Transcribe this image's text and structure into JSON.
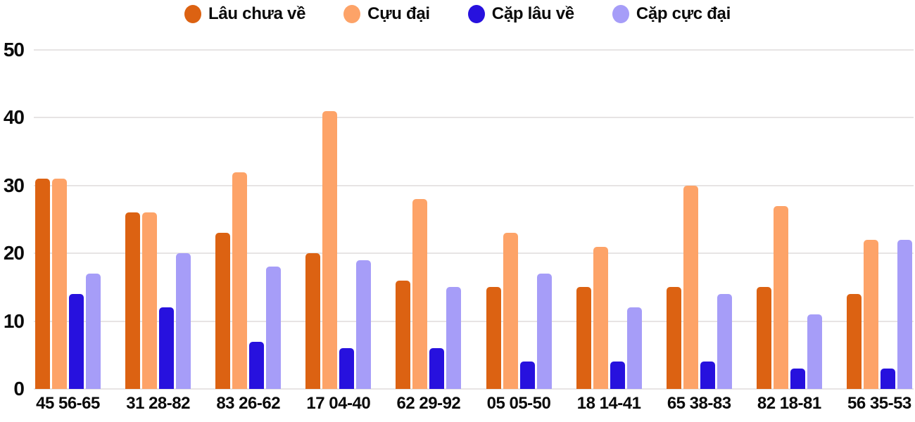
{
  "chart_data": {
    "type": "bar",
    "title": "",
    "xlabel": "",
    "ylabel": "",
    "categories": [
      "45 56-65",
      "31 28-82",
      "83 26-62",
      "17 04-40",
      "62 29-92",
      "05 05-50",
      "18 14-41",
      "65 38-83",
      "82 18-81",
      "56 35-53"
    ],
    "series": [
      {
        "name": "Lâu chưa về",
        "color": "#DC6212",
        "values": [
          31,
          26,
          23,
          20,
          16,
          15,
          15,
          15,
          15,
          14
        ]
      },
      {
        "name": "Cựu đại",
        "color": "#FDA368",
        "values": [
          31,
          26,
          32,
          41,
          28,
          23,
          21,
          30,
          27,
          22
        ]
      },
      {
        "name": "Cặp lâu về",
        "color": "#2711DE",
        "values": [
          14,
          12,
          7,
          6,
          6,
          4,
          4,
          4,
          3,
          3
        ]
      },
      {
        "name": "Cặp cực đại",
        "color": "#A69DF8",
        "values": [
          17,
          20,
          18,
          19,
          15,
          17,
          12,
          14,
          11,
          22
        ]
      }
    ],
    "ylim": [
      0,
      50
    ],
    "yticks": [
      0,
      10,
      20,
      30,
      40,
      50
    ],
    "grid": "horizontal",
    "legend_position": "top"
  },
  "colors": {
    "background": "#FFFFFF",
    "grid": "#E7E4E4",
    "axis_text": "#0A0A0A",
    "legend_text": "#0A0A0A"
  }
}
